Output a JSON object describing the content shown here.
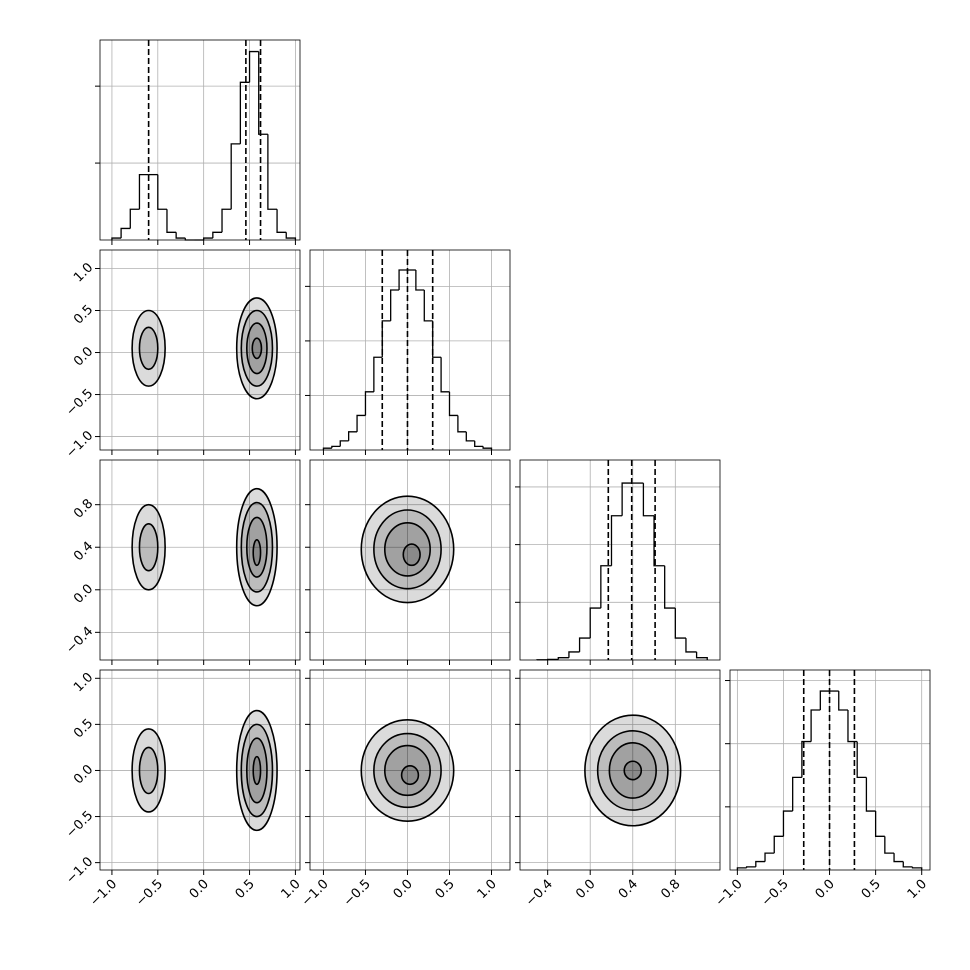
{
  "chart_data": {
    "type": "corner",
    "params": [
      {
        "lim": [
          -1.13,
          1.05
        ],
        "ticks": [
          {
            "value": -1.0,
            "label": "−1.0"
          },
          {
            "value": -0.5,
            "label": "−0.5"
          },
          {
            "value": 0.0,
            "label": "0.0"
          },
          {
            "value": 0.5,
            "label": "0.5"
          },
          {
            "value": 1.0,
            "label": "1.0"
          }
        ],
        "hist": {
          "bins": [
            -1.0,
            -0.9,
            -0.8,
            -0.7,
            -0.6,
            -0.5,
            -0.4,
            -0.3,
            -0.2,
            -0.1,
            0.0,
            0.1,
            0.2,
            0.3,
            0.4,
            0.5,
            0.6,
            0.7,
            0.8,
            0.9,
            1.0
          ],
          "values": [
            0.01,
            0.06,
            0.16,
            0.34,
            0.34,
            0.16,
            0.04,
            0.01,
            0,
            0,
            0.01,
            0.04,
            0.16,
            0.5,
            0.82,
            0.98,
            0.55,
            0.16,
            0.04,
            0.01
          ],
          "ylim": [
            0,
            1.04
          ],
          "yticks": [
            0.4,
            0.8
          ]
        },
        "quantiles": [
          -0.6,
          0.46,
          0.62
        ]
      },
      {
        "lim": [
          -1.16,
          1.22
        ],
        "ticks": [
          {
            "value": -1.0,
            "label": "−1.0"
          },
          {
            "value": -0.5,
            "label": "−0.5"
          },
          {
            "value": 0.0,
            "label": "0.0"
          },
          {
            "value": 0.5,
            "label": "0.5"
          },
          {
            "value": 1.0,
            "label": "1.0"
          }
        ],
        "hist": {
          "bins": [
            -1.0,
            -0.9,
            -0.8,
            -0.7,
            -0.6,
            -0.5,
            -0.4,
            -0.3,
            -0.2,
            -0.1,
            0.0,
            0.1,
            0.2,
            0.3,
            0.4,
            0.5,
            0.6,
            0.7,
            0.8,
            0.9,
            1.0
          ],
          "values": [
            0.01,
            0.02,
            0.05,
            0.1,
            0.19,
            0.32,
            0.51,
            0.71,
            0.88,
            0.99,
            0.99,
            0.88,
            0.71,
            0.51,
            0.32,
            0.19,
            0.1,
            0.05,
            0.02,
            0.01
          ],
          "ylim": [
            0,
            1.1
          ],
          "yticks": [
            0.3,
            0.6,
            0.9
          ]
        },
        "quantiles": [
          -0.3,
          0.0,
          0.3
        ]
      },
      {
        "lim": [
          -0.66,
          1.22
        ],
        "ticks": [
          {
            "value": -0.4,
            "label": "−0.4"
          },
          {
            "value": 0.0,
            "label": "0.0"
          },
          0.4,
          0.8
        ],
        "hist": {
          "bins": [
            -0.5,
            -0.4,
            -0.3,
            -0.2,
            -0.1,
            0.0,
            0.1,
            0.2,
            0.3,
            0.4,
            0.5,
            0.6,
            0.7,
            0.8,
            0.9,
            1.0,
            1.1
          ],
          "values": [
            0.001,
            0.003,
            0.012,
            0.042,
            0.114,
            0.27,
            0.49,
            0.75,
            0.92,
            0.92,
            0.75,
            0.49,
            0.27,
            0.114,
            0.042,
            0.012
          ],
          "ylim": [
            0,
            1.04
          ],
          "yticks": [
            0.3,
            0.6,
            0.9
          ]
        },
        "quantiles": [
          0.17,
          0.39,
          0.61
        ]
      },
      {
        "lim": [
          -1.08,
          1.09
        ],
        "ticks": [
          {
            "value": -1.0,
            "label": "−1.0"
          },
          {
            "value": -0.5,
            "label": "−0.5"
          },
          {
            "value": 0.0,
            "label": "0.0"
          },
          {
            "value": 0.5,
            "label": "0.5"
          },
          {
            "value": 1.0,
            "label": "1.0"
          }
        ],
        "hist": {
          "bins": [
            -1.0,
            -0.9,
            -0.8,
            -0.7,
            -0.6,
            -0.5,
            -0.4,
            -0.3,
            -0.2,
            -0.1,
            0.0,
            0.1,
            0.2,
            0.3,
            0.4,
            0.5,
            0.6,
            0.7,
            0.8,
            0.9,
            1.0
          ],
          "values": [
            0.01,
            0.015,
            0.04,
            0.08,
            0.16,
            0.28,
            0.44,
            0.61,
            0.76,
            0.85,
            0.85,
            0.76,
            0.61,
            0.44,
            0.28,
            0.16,
            0.08,
            0.04,
            0.015,
            0.01
          ],
          "ylim": [
            0,
            0.95
          ],
          "yticks": [
            0.3,
            0.6,
            0.9
          ]
        },
        "quantiles": [
          -0.28,
          0.0,
          0.27
        ]
      }
    ],
    "pairs": [
      {
        "x_param": 0,
        "y_param": 1,
        "contours": [
          {
            "cx": -0.6,
            "cy": 0.05,
            "rx": 0.18,
            "ry": 0.45
          },
          {
            "cx": -0.6,
            "cy": 0.05,
            "rx": 0.1,
            "ry": 0.25
          },
          {
            "cx": 0.58,
            "cy": 0.05,
            "rx": 0.22,
            "ry": 0.6
          },
          {
            "cx": 0.58,
            "cy": 0.05,
            "rx": 0.17,
            "ry": 0.45
          },
          {
            "cx": 0.58,
            "cy": 0.05,
            "rx": 0.11,
            "ry": 0.3
          },
          {
            "cx": 0.58,
            "cy": 0.05,
            "rx": 0.05,
            "ry": 0.12
          }
        ]
      },
      {
        "x_param": 0,
        "y_param": 2,
        "contours": [
          {
            "cx": -0.6,
            "cy": 0.4,
            "rx": 0.18,
            "ry": 0.4
          },
          {
            "cx": -0.6,
            "cy": 0.4,
            "rx": 0.1,
            "ry": 0.22
          },
          {
            "cx": 0.58,
            "cy": 0.4,
            "rx": 0.22,
            "ry": 0.55
          },
          {
            "cx": 0.58,
            "cy": 0.4,
            "rx": 0.17,
            "ry": 0.42
          },
          {
            "cx": 0.58,
            "cy": 0.4,
            "rx": 0.11,
            "ry": 0.28
          },
          {
            "cx": 0.58,
            "cy": 0.35,
            "rx": 0.04,
            "ry": 0.12
          }
        ]
      },
      {
        "x_param": 1,
        "y_param": 2,
        "contours": [
          {
            "cx": 0.0,
            "cy": 0.38,
            "rx": 0.55,
            "ry": 0.5
          },
          {
            "cx": 0.0,
            "cy": 0.38,
            "rx": 0.4,
            "ry": 0.37
          },
          {
            "cx": 0.0,
            "cy": 0.38,
            "rx": 0.27,
            "ry": 0.25
          },
          {
            "cx": 0.05,
            "cy": 0.33,
            "rx": 0.1,
            "ry": 0.1
          }
        ]
      },
      {
        "x_param": 0,
        "y_param": 3,
        "contours": [
          {
            "cx": -0.6,
            "cy": 0.0,
            "rx": 0.18,
            "ry": 0.45
          },
          {
            "cx": -0.6,
            "cy": 0.0,
            "rx": 0.1,
            "ry": 0.25
          },
          {
            "cx": 0.58,
            "cy": 0.0,
            "rx": 0.22,
            "ry": 0.65
          },
          {
            "cx": 0.58,
            "cy": 0.0,
            "rx": 0.17,
            "ry": 0.5
          },
          {
            "cx": 0.58,
            "cy": 0.0,
            "rx": 0.11,
            "ry": 0.35
          },
          {
            "cx": 0.58,
            "cy": 0.0,
            "rx": 0.04,
            "ry": 0.15
          }
        ]
      },
      {
        "x_param": 1,
        "y_param": 3,
        "contours": [
          {
            "cx": 0.0,
            "cy": 0.0,
            "rx": 0.55,
            "ry": 0.55
          },
          {
            "cx": 0.0,
            "cy": 0.0,
            "rx": 0.4,
            "ry": 0.4
          },
          {
            "cx": 0.0,
            "cy": 0.0,
            "rx": 0.27,
            "ry": 0.27
          },
          {
            "cx": 0.03,
            "cy": -0.05,
            "rx": 0.1,
            "ry": 0.1
          }
        ]
      },
      {
        "x_param": 2,
        "y_param": 3,
        "contours": [
          {
            "cx": 0.4,
            "cy": 0.0,
            "rx": 0.45,
            "ry": 0.6
          },
          {
            "cx": 0.4,
            "cy": 0.0,
            "rx": 0.33,
            "ry": 0.43
          },
          {
            "cx": 0.4,
            "cy": 0.0,
            "rx": 0.22,
            "ry": 0.3
          },
          {
            "cx": 0.4,
            "cy": 0.0,
            "rx": 0.08,
            "ry": 0.1
          }
        ]
      }
    ]
  }
}
